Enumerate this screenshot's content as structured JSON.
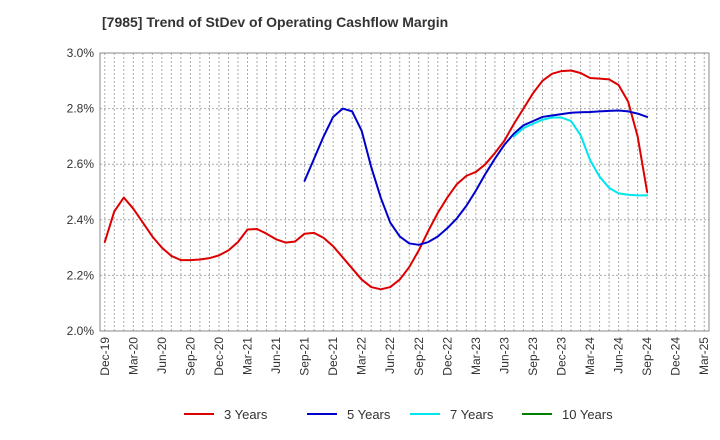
{
  "chart_data": {
    "type": "line",
    "title": "[7985]  Trend of StDev of Operating Cashflow Margin",
    "xlabel": "",
    "ylabel": "",
    "ylim": [
      2.0,
      3.0
    ],
    "y_ticks": [
      2.0,
      2.2,
      2.4,
      2.6,
      2.8,
      3.0
    ],
    "y_tick_labels": [
      "2.0%",
      "2.2%",
      "2.4%",
      "2.6%",
      "2.8%",
      "3.0%"
    ],
    "x_tick_labels": [
      "Dec-19",
      "Mar-20",
      "Jun-20",
      "Sep-20",
      "Dec-20",
      "Mar-21",
      "Jun-21",
      "Sep-21",
      "Dec-21",
      "Mar-22",
      "Jun-22",
      "Sep-22",
      "Dec-22",
      "Mar-23",
      "Jun-23",
      "Sep-23",
      "Dec-23",
      "Mar-24",
      "Jun-24",
      "Sep-24",
      "Dec-24",
      "Mar-25"
    ],
    "grid": true,
    "legend_position": "bottom",
    "series": [
      {
        "name": "3 Years",
        "color": "#dd0000",
        "values": [
          [
            0,
            2.32
          ],
          [
            1,
            2.43
          ],
          [
            2,
            2.48
          ],
          [
            3,
            2.44
          ],
          [
            4,
            2.39
          ],
          [
            5,
            2.34
          ],
          [
            6,
            2.3
          ],
          [
            7,
            2.27
          ],
          [
            8,
            2.255
          ],
          [
            9,
            2.255
          ],
          [
            10,
            2.257
          ],
          [
            11,
            2.262
          ],
          [
            12,
            2.272
          ],
          [
            13,
            2.29
          ],
          [
            14,
            2.32
          ],
          [
            15,
            2.365
          ],
          [
            16,
            2.367
          ],
          [
            17,
            2.35
          ],
          [
            18,
            2.33
          ],
          [
            19,
            2.318
          ],
          [
            20,
            2.322
          ],
          [
            21,
            2.35
          ],
          [
            22,
            2.353
          ],
          [
            23,
            2.335
          ],
          [
            24,
            2.305
          ],
          [
            25,
            2.265
          ],
          [
            26,
            2.225
          ],
          [
            27,
            2.185
          ],
          [
            28,
            2.158
          ],
          [
            29,
            2.15
          ],
          [
            30,
            2.158
          ],
          [
            31,
            2.185
          ],
          [
            32,
            2.23
          ],
          [
            33,
            2.29
          ],
          [
            34,
            2.36
          ],
          [
            35,
            2.425
          ],
          [
            36,
            2.48
          ],
          [
            37,
            2.528
          ],
          [
            38,
            2.558
          ],
          [
            39,
            2.572
          ],
          [
            40,
            2.6
          ],
          [
            41,
            2.64
          ],
          [
            42,
            2.685
          ],
          [
            43,
            2.745
          ],
          [
            44,
            2.8
          ],
          [
            45,
            2.855
          ],
          [
            46,
            2.9
          ],
          [
            47,
            2.925
          ],
          [
            48,
            2.935
          ],
          [
            49,
            2.937
          ],
          [
            50,
            2.928
          ],
          [
            51,
            2.91
          ],
          [
            52,
            2.908
          ],
          [
            53,
            2.905
          ],
          [
            54,
            2.885
          ],
          [
            55,
            2.825
          ],
          [
            56,
            2.7
          ],
          [
            57,
            2.5
          ]
        ]
      },
      {
        "name": "5 Years",
        "color": "#0000cc",
        "values": [
          [
            21,
            2.54
          ],
          [
            22,
            2.62
          ],
          [
            23,
            2.7
          ],
          [
            24,
            2.77
          ],
          [
            25,
            2.8
          ],
          [
            26,
            2.79
          ],
          [
            27,
            2.72
          ],
          [
            28,
            2.59
          ],
          [
            29,
            2.48
          ],
          [
            30,
            2.39
          ],
          [
            31,
            2.34
          ],
          [
            32,
            2.315
          ],
          [
            33,
            2.31
          ],
          [
            34,
            2.32
          ],
          [
            35,
            2.34
          ],
          [
            36,
            2.37
          ],
          [
            37,
            2.405
          ],
          [
            38,
            2.45
          ],
          [
            39,
            2.505
          ],
          [
            40,
            2.565
          ],
          [
            41,
            2.62
          ],
          [
            42,
            2.67
          ],
          [
            43,
            2.71
          ],
          [
            44,
            2.74
          ],
          [
            45,
            2.755
          ],
          [
            46,
            2.77
          ],
          [
            47,
            2.775
          ],
          [
            48,
            2.78
          ],
          [
            49,
            2.785
          ],
          [
            50,
            2.787
          ],
          [
            51,
            2.788
          ],
          [
            52,
            2.79
          ],
          [
            53,
            2.792
          ],
          [
            54,
            2.793
          ],
          [
            55,
            2.79
          ],
          [
            56,
            2.782
          ],
          [
            57,
            2.77
          ]
        ]
      },
      {
        "name": "7 Years",
        "color": "#00e5ee",
        "values": [
          [
            43,
            2.7
          ],
          [
            44,
            2.73
          ],
          [
            45,
            2.745
          ],
          [
            46,
            2.76
          ],
          [
            47,
            2.768
          ],
          [
            48,
            2.768
          ],
          [
            49,
            2.755
          ],
          [
            50,
            2.705
          ],
          [
            51,
            2.615
          ],
          [
            52,
            2.555
          ],
          [
            53,
            2.515
          ],
          [
            54,
            2.495
          ],
          [
            55,
            2.49
          ],
          [
            56,
            2.488
          ],
          [
            57,
            2.488
          ]
        ]
      },
      {
        "name": "10 Years",
        "color": "#008000",
        "values": []
      }
    ]
  }
}
